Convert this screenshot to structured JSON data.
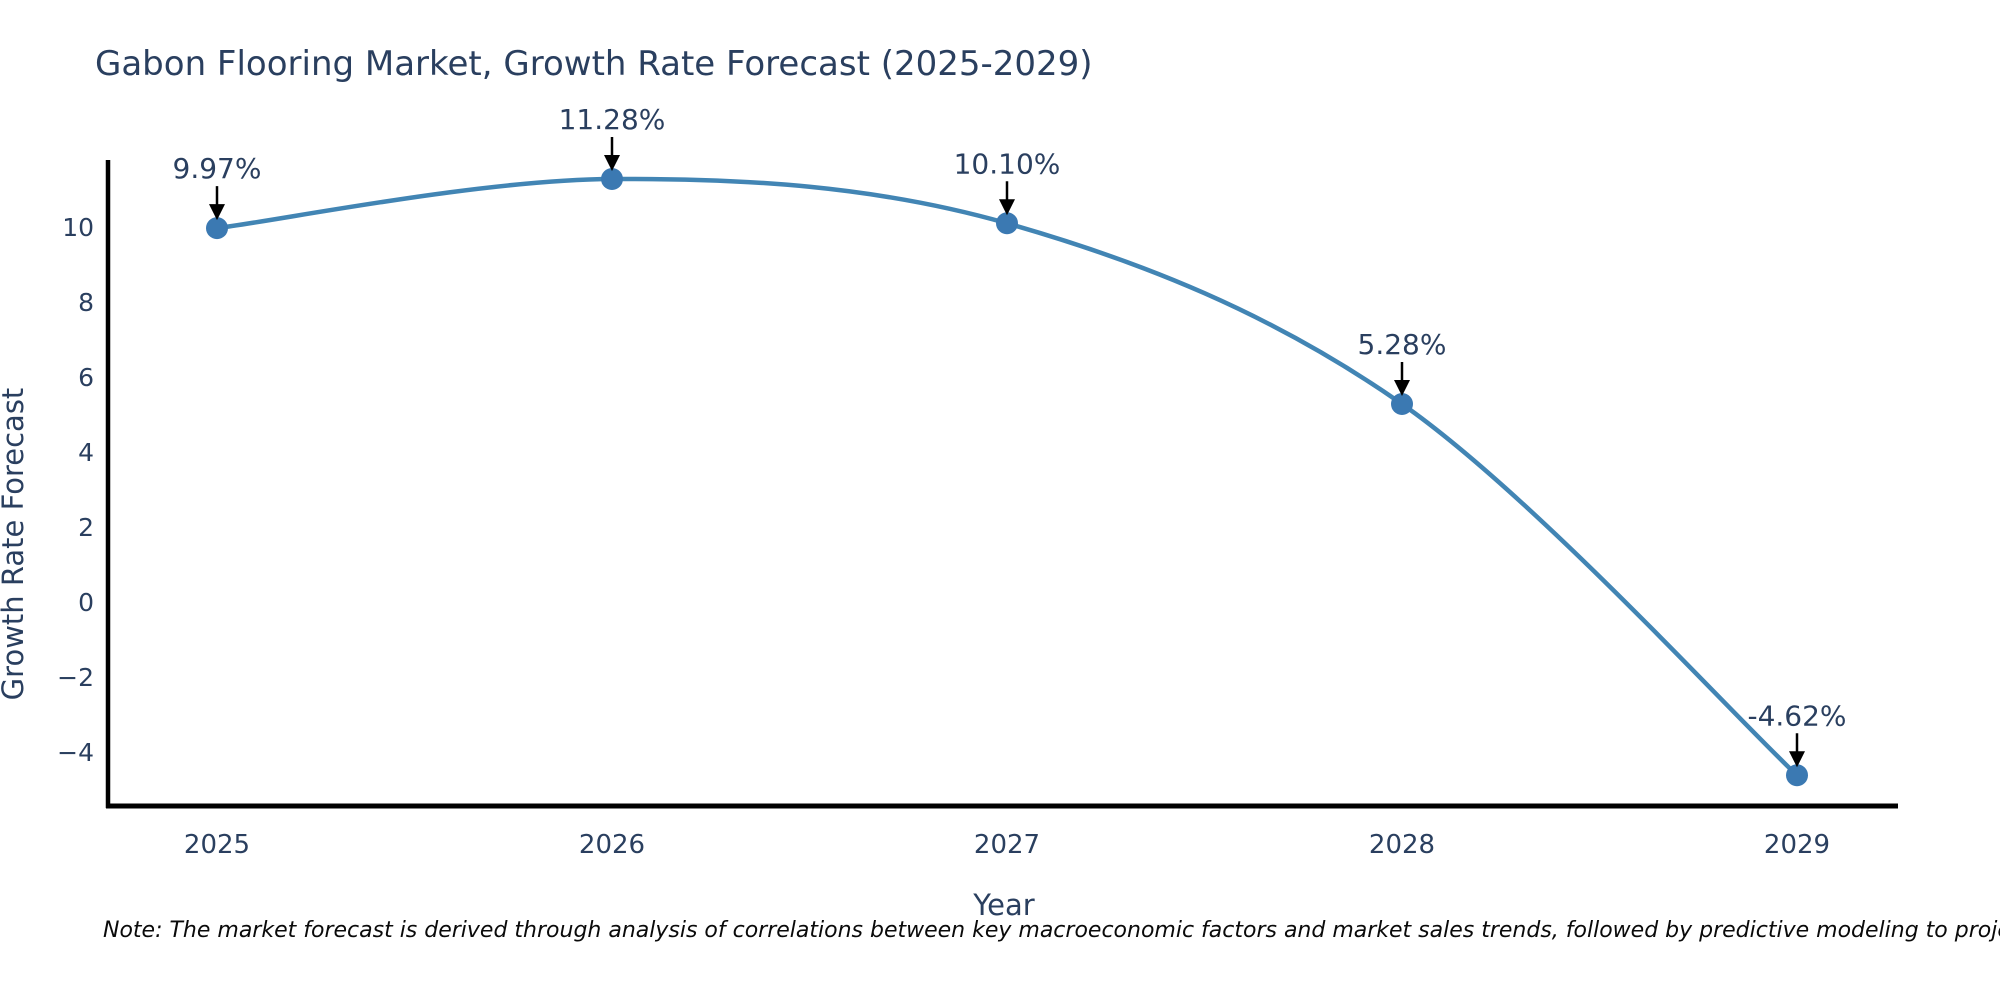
{
  "chart": {
    "title": "Gabon Flooring Market, Growth Rate Forecast (2025-2029)",
    "x_axis_label": "Year",
    "y_axis_label": "Growth Rate Forecast",
    "note": "Note: The market forecast is derived through analysis of correlations between key macroeconomic factors and market sales trends, followed by predictive modeling to project future sales"
  },
  "chart_data": {
    "type": "line",
    "title": "Gabon Flooring Market, Growth Rate Forecast (2025-2029)",
    "xlabel": "Year",
    "ylabel": "Growth Rate Forecast",
    "x": [
      2025,
      2026,
      2027,
      2028,
      2029
    ],
    "values": [
      9.97,
      11.28,
      10.1,
      5.28,
      -4.62
    ],
    "point_labels": [
      "9.97%",
      "11.28%",
      "10.10%",
      "5.28%",
      "-4.62%"
    ],
    "y_ticks": [
      10,
      8,
      6,
      4,
      2,
      0,
      -2,
      -4
    ],
    "ylim": [
      -5.5,
      11.8
    ],
    "grid": false,
    "legend": "none",
    "curve": "spline",
    "line_color": "#4285b4",
    "marker_color": "#3b79b2",
    "axis_color": "#000000",
    "arrow_color": "#000000",
    "text_color": "#2a3f5f"
  }
}
